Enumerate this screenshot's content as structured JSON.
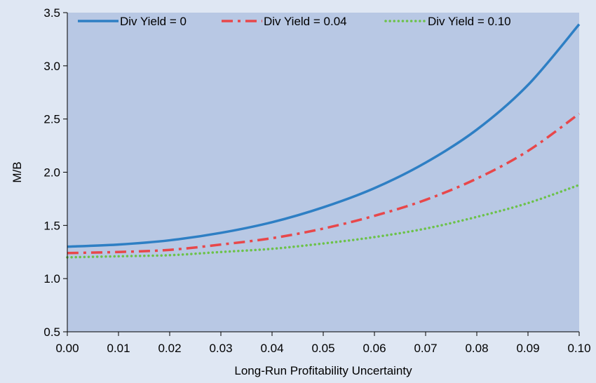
{
  "chart_data": {
    "type": "line",
    "title": "",
    "xlabel": "Long-Run Profitability Uncertainty",
    "ylabel": "M/B",
    "xlim": [
      0,
      0.1
    ],
    "ylim": [
      0.5,
      3.5
    ],
    "x_ticks": [
      "0.00",
      "0.01",
      "0.02",
      "0.03",
      "0.04",
      "0.05",
      "0.06",
      "0.07",
      "0.08",
      "0.09",
      "0.10"
    ],
    "y_ticks": [
      "0.5",
      "1.0",
      "1.5",
      "2.0",
      "2.5",
      "3.0",
      "3.5"
    ],
    "x": [
      0.0,
      0.01,
      0.02,
      0.03,
      0.04,
      0.05,
      0.06,
      0.07,
      0.08,
      0.09,
      0.1
    ],
    "series": [
      {
        "name": "Div Yield = 0",
        "values": [
          1.3,
          1.32,
          1.36,
          1.43,
          1.53,
          1.67,
          1.85,
          2.09,
          2.4,
          2.82,
          3.39
        ],
        "color": "#2e7fc4",
        "style": "solid"
      },
      {
        "name": "Div Yield = 0.04",
        "values": [
          1.24,
          1.25,
          1.27,
          1.32,
          1.38,
          1.47,
          1.59,
          1.74,
          1.94,
          2.2,
          2.55
        ],
        "color": "#e8474a",
        "style": "dashdot"
      },
      {
        "name": "Div Yield = 0.10",
        "values": [
          1.2,
          1.21,
          1.22,
          1.25,
          1.28,
          1.33,
          1.39,
          1.47,
          1.58,
          1.71,
          1.88
        ],
        "color": "#6cc24a",
        "style": "dotted"
      }
    ],
    "grid": false,
    "legend": "top",
    "colors": {
      "plot_background": "#b8c8e4",
      "page_background": "#dfe7f3",
      "axis": "#000000"
    }
  }
}
